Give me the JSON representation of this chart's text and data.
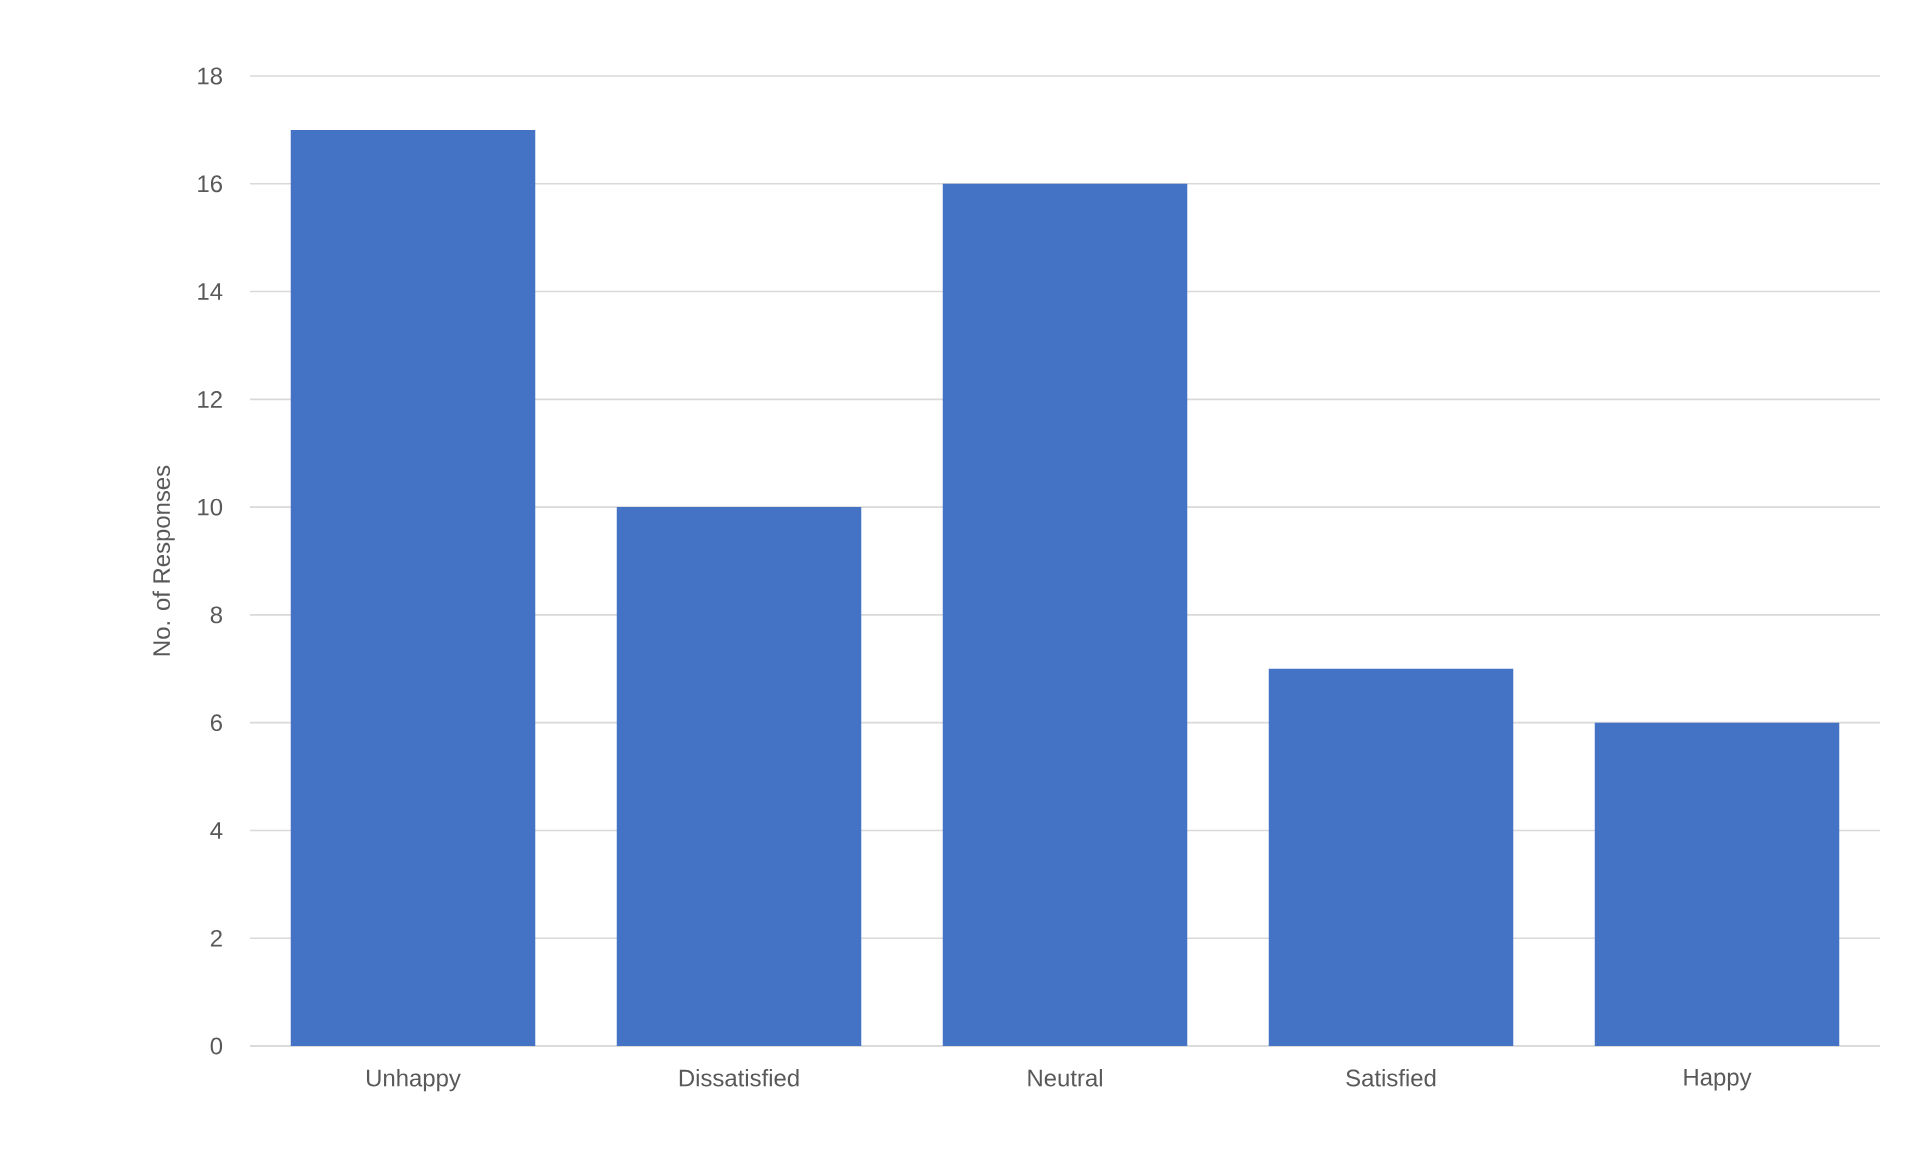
{
  "chart_data": {
    "type": "bar",
    "ylabel": "No. of Responses",
    "categories": [
      "Unhappy",
      "Dissatisfied",
      "Neutral",
      "Satisfied",
      "Happy"
    ],
    "values": [
      17,
      10,
      16,
      7,
      6
    ],
    "color": "#4472c4",
    "ylim": [
      0,
      18
    ],
    "yticks": [
      0,
      2,
      4,
      6,
      8,
      10,
      12,
      14,
      16,
      18
    ],
    "grid": "y"
  }
}
